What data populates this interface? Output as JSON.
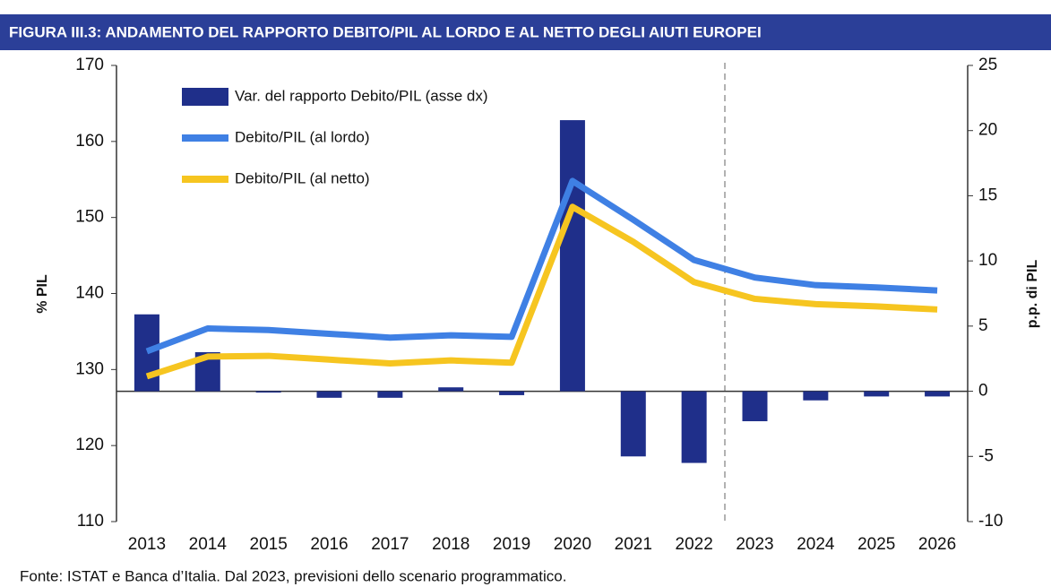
{
  "chart_data": {
    "type": "bar-line",
    "title": "FIGURA III.3: ANDAMENTO DEL RAPPORTO DEBITO/PIL AL LORDO E AL NETTO DEGLI AIUTI EUROPEI",
    "source": "Fonte: ISTAT e Banca d’Italia. Dal 2023, previsioni dello scenario programmatico.",
    "ylabel": "% PIL",
    "y2label": "p.p. di PIL",
    "categories": [
      "2013",
      "2014",
      "2015",
      "2016",
      "2017",
      "2018",
      "2019",
      "2020",
      "2021",
      "2022",
      "2023",
      "2024",
      "2025",
      "2026"
    ],
    "series": [
      {
        "name": "Var. del rapporto Debito/PIL (asse dx)",
        "type": "bar",
        "axis": "y2",
        "color": "#1f2f8a",
        "values": [
          5.9,
          3.0,
          -0.1,
          -0.5,
          -0.5,
          0.3,
          -0.3,
          20.8,
          -5.0,
          -5.5,
          -2.3,
          -0.7,
          -0.4,
          -0.4
        ]
      },
      {
        "name": "Debito/PIL (al lordo)",
        "type": "line",
        "axis": "y",
        "color": "#3f80e4",
        "values": [
          132.4,
          135.4,
          135.2,
          134.7,
          134.2,
          134.5,
          134.3,
          154.8,
          149.7,
          144.4,
          142.1,
          141.1,
          140.8,
          140.4
        ]
      },
      {
        "name": "Debito/PIL (al netto)",
        "type": "line",
        "axis": "y",
        "color": "#f6c520",
        "values": [
          129.1,
          131.7,
          131.8,
          131.3,
          130.8,
          131.2,
          130.9,
          151.4,
          146.8,
          141.5,
          139.3,
          138.6,
          138.3,
          137.9
        ]
      }
    ],
    "ylim": [
      110,
      170
    ],
    "yticks": [
      110,
      120,
      130,
      140,
      150,
      160,
      170
    ],
    "y2lim": [
      -10,
      25
    ],
    "y2ticks": [
      -10,
      -5,
      0,
      5,
      10,
      15,
      20,
      25
    ],
    "grid": false
  }
}
